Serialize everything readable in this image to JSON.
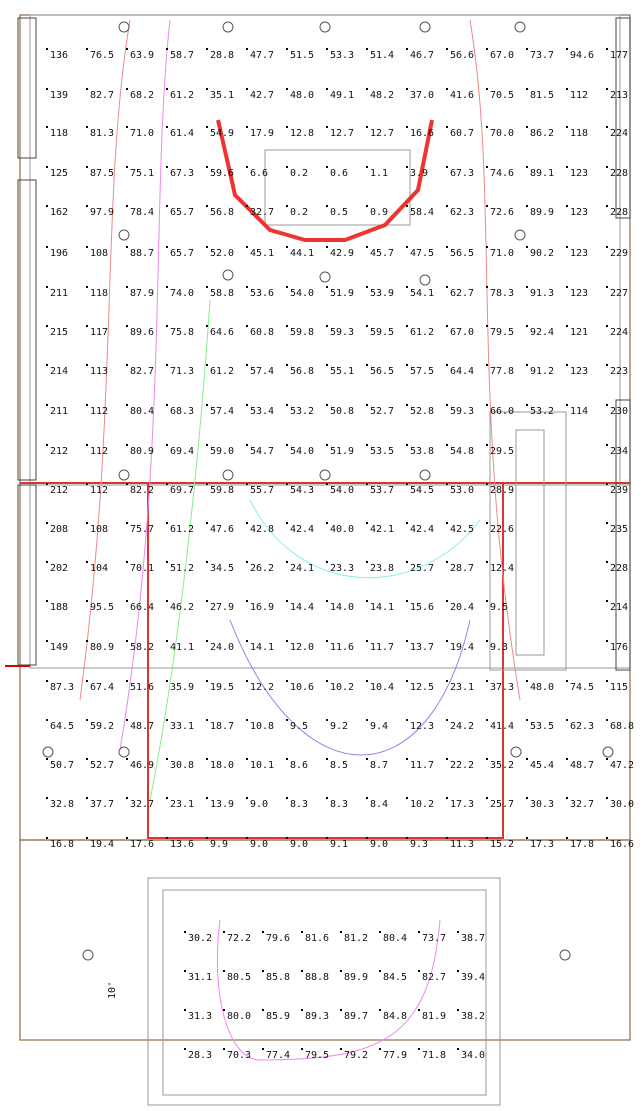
{
  "grid": {
    "rows": [
      [
        "136",
        "76.5",
        "63.9",
        "58.7",
        "28.8",
        "47.7",
        "51.5",
        "53.3",
        "51.4",
        "46.7",
        "56.6",
        "67.0",
        "73.7",
        "94.6",
        "177"
      ],
      [
        "139",
        "82.7",
        "68.2",
        "61.2",
        "35.1",
        "42.7",
        "48.0",
        "49.1",
        "48.2",
        "37.0",
        "41.6",
        "70.5",
        "81.5",
        "112",
        "213"
      ],
      [
        "118",
        "81.3",
        "71.0",
        "61.4",
        "54.9",
        "17.9",
        "12.8",
        "12.7",
        "12.7",
        "16.6",
        "60.7",
        "70.0",
        "86.2",
        "118",
        "224"
      ],
      [
        "125",
        "87.5",
        "75.1",
        "67.3",
        "59.6",
        "6.6",
        "0.2",
        "0.6",
        "1.1",
        "3.9",
        "67.3",
        "74.6",
        "89.1",
        "123",
        "228"
      ],
      [
        "162",
        "97.9",
        "78.4",
        "65.7",
        "56.8",
        "32.7",
        "0.2",
        "0.5",
        "0.9",
        "58.4",
        "62.3",
        "72.6",
        "89.9",
        "123",
        "228"
      ],
      [
        "196",
        "108",
        "88.7",
        "65.7",
        "52.0",
        "45.1",
        "44.1",
        "42.9",
        "45.7",
        "47.5",
        "56.5",
        "71.0",
        "90.2",
        "123",
        "229"
      ],
      [
        "211",
        "118",
        "87.9",
        "74.0",
        "58.8",
        "53.6",
        "54.0",
        "51.9",
        "53.9",
        "54.1",
        "62.7",
        "78.3",
        "91.3",
        "123",
        "227"
      ],
      [
        "215",
        "117",
        "89.6",
        "75.8",
        "64.6",
        "60.8",
        "59.8",
        "59.3",
        "59.5",
        "61.2",
        "67.0",
        "79.5",
        "92.4",
        "121",
        "224"
      ],
      [
        "214",
        "113",
        "82.7",
        "71.3",
        "61.2",
        "57.4",
        "56.8",
        "55.1",
        "56.5",
        "57.5",
        "64.4",
        "77.8",
        "91.2",
        "123",
        "223"
      ],
      [
        "211",
        "112",
        "80.4",
        "68.3",
        "57.4",
        "53.4",
        "53.2",
        "50.8",
        "52.7",
        "52.8",
        "59.3",
        "66.0",
        "53.2",
        "114",
        "230"
      ],
      [
        "212",
        "112",
        "80.9",
        "69.4",
        "59.0",
        "54.7",
        "54.0",
        "51.9",
        "53.5",
        "53.8",
        "54.8",
        "29.5",
        null,
        null,
        "234"
      ],
      [
        "212",
        "112",
        "82.2",
        "69.7",
        "59.8",
        "55.7",
        "54.3",
        "54.0",
        "53.7",
        "54.5",
        "53.0",
        "28.9",
        null,
        null,
        "239"
      ],
      [
        "208",
        "108",
        "75.7",
        "61.2",
        "47.6",
        "42.8",
        "42.4",
        "40.0",
        "42.1",
        "42.4",
        "42.5",
        "22.6",
        null,
        null,
        "235"
      ],
      [
        "202",
        "104",
        "70.1",
        "51.2",
        "34.5",
        "26.2",
        "24.1",
        "23.3",
        "23.8",
        "25.7",
        "28.7",
        "12.4",
        null,
        null,
        "228"
      ],
      [
        "188",
        "95.5",
        "66.4",
        "46.2",
        "27.9",
        "16.9",
        "14.4",
        "14.0",
        "14.1",
        "15.6",
        "20.4",
        "9.5",
        null,
        null,
        "214"
      ],
      [
        "149",
        "80.9",
        "58.2",
        "41.1",
        "24.0",
        "14.1",
        "12.0",
        "11.6",
        "11.7",
        "13.7",
        "19.4",
        "9.3",
        null,
        null,
        "176"
      ],
      [
        "87.3",
        "67.4",
        "51.6",
        "35.9",
        "19.5",
        "12.2",
        "10.6",
        "10.2",
        "10.4",
        "12.5",
        "23.1",
        "37.3",
        "48.0",
        "74.5",
        "115"
      ],
      [
        "64.5",
        "59.2",
        "48.7",
        "33.1",
        "18.7",
        "10.8",
        "9.5",
        "9.2",
        "9.4",
        "12.3",
        "24.2",
        "41.4",
        "53.5",
        "62.3",
        "68.8"
      ],
      [
        "50.7",
        "52.7",
        "46.9",
        "30.8",
        "18.0",
        "10.1",
        "8.6",
        "8.5",
        "8.7",
        "11.7",
        "22.2",
        "35.2",
        "45.4",
        "48.7",
        "47.2"
      ],
      [
        "32.8",
        "37.7",
        "32.7",
        "23.1",
        "13.9",
        "9.0",
        "8.3",
        "8.3",
        "8.4",
        "10.2",
        "17.3",
        "25.7",
        "30.3",
        "32.7",
        "30.0"
      ],
      [
        "16.8",
        "19.4",
        "17.6",
        "13.6",
        "9.9",
        "9.0",
        "9.0",
        "9.1",
        "9.0",
        "9.3",
        "11.3",
        "15.2",
        "17.3",
        "17.8",
        "16.6"
      ]
    ]
  },
  "inner_grid": {
    "rows": [
      [
        "30.2",
        "72.2",
        "79.6",
        "81.6",
        "81.2",
        "80.4",
        "73.7",
        "38.7"
      ],
      [
        "31.1",
        "80.5",
        "85.8",
        "88.8",
        "89.9",
        "84.5",
        "82.7",
        "39.4"
      ],
      [
        "31.3",
        "80.0",
        "85.9",
        "89.3",
        "89.7",
        "84.8",
        "81.9",
        "38.2"
      ],
      [
        "28.3",
        "70.3",
        "77.4",
        "79.5",
        "79.2",
        "77.9",
        "71.8",
        "34.0"
      ]
    ]
  },
  "dimension_label": "10'"
}
